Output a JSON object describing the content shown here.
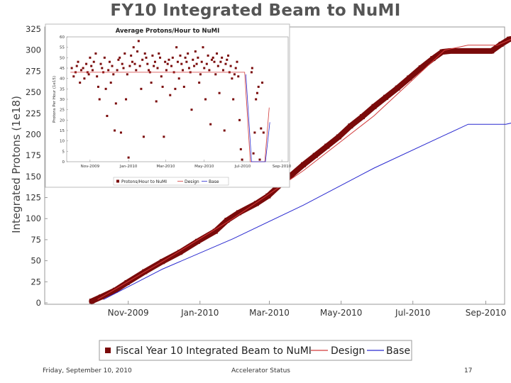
{
  "slide": {
    "footer_date": "Friday, September 10, 2010",
    "footer_center": "Accelerator Status",
    "page_number": "17"
  },
  "chart_data": [
    {
      "type": "line",
      "title": "FY10 Integrated Beam to NuMI",
      "ylabel": "Integrated Protons (1e18)",
      "xlabel": "",
      "ylim": [
        0,
        325
      ],
      "yticks": [
        0,
        25,
        50,
        75,
        100,
        125,
        150,
        175,
        200,
        225,
        250,
        275,
        300,
        325
      ],
      "x_domain_days": [
        -40,
        351
      ],
      "xticks": [
        {
          "label": "Nov-2009",
          "day": 31
        },
        {
          "label": "Jan-2010",
          "day": 92
        },
        {
          "label": "Mar-2010",
          "day": 151
        },
        {
          "label": "May-2010",
          "day": 212
        },
        {
          "label": "Jul-2010",
          "day": 273
        },
        {
          "label": "Sep-2010",
          "day": 335
        }
      ],
      "series": [
        {
          "name": "Fiscal Year 10 Integrated Beam to NuMI",
          "color": "#7a0a0a",
          "points": [
            [
              0,
              2
            ],
            [
              8,
              7
            ],
            [
              20,
              15
            ],
            [
              30,
              24
            ],
            [
              45,
              37
            ],
            [
              60,
              49
            ],
            [
              75,
              60
            ],
            [
              90,
              73
            ],
            [
              105,
              85
            ],
            [
              115,
              98
            ],
            [
              125,
              107
            ],
            [
              140,
              118
            ],
            [
              150,
              127
            ],
            [
              160,
              140
            ],
            [
              170,
              152
            ],
            [
              180,
              164
            ],
            [
              190,
              175
            ],
            [
              200,
              186
            ],
            [
              210,
              197
            ],
            [
              220,
              210
            ],
            [
              230,
              221
            ],
            [
              240,
              233
            ],
            [
              250,
              244
            ],
            [
              260,
              255
            ],
            [
              270,
              267
            ],
            [
              280,
              279
            ],
            [
              290,
              290
            ],
            [
              298,
              298
            ],
            [
              305,
              299
            ],
            [
              320,
              299
            ],
            [
              340,
              299
            ],
            [
              348,
              307
            ],
            [
              355,
              313
            ],
            [
              360,
              314
            ]
          ]
        },
        {
          "name": "Design",
          "color": "#d23a3a",
          "points": [
            [
              5,
              4
            ],
            [
              60,
              49
            ],
            [
              120,
              100
            ],
            [
              180,
              157
            ],
            [
              240,
              222
            ],
            [
              300,
              300
            ],
            [
              320,
              306
            ],
            [
              345,
              306
            ],
            [
              360,
              315
            ]
          ]
        },
        {
          "name": "Base",
          "color": "#2a2ad0",
          "points": [
            [
              10,
              4
            ],
            [
              60,
              40
            ],
            [
              120,
              76
            ],
            [
              180,
              116
            ],
            [
              240,
              160
            ],
            [
              300,
              199
            ],
            [
              320,
              212
            ],
            [
              352,
              212
            ],
            [
              368,
              217
            ]
          ]
        }
      ],
      "legend": [
        "Fiscal Year 10 Integrated Beam to NuMI",
        "Design",
        "Base"
      ]
    },
    {
      "type": "scatter",
      "title": "Average Protons/Hour to NuMI",
      "ylabel": "Protons Per Hour (1e15)",
      "ylim": [
        0,
        60
      ],
      "yticks": [
        0,
        5,
        10,
        15,
        20,
        25,
        30,
        35,
        40,
        45,
        50,
        55,
        60
      ],
      "x_domain_days": [
        -6,
        345
      ],
      "xticks": [
        {
          "label": "Nov-2009",
          "day": 31
        },
        {
          "label": "Jan-2010",
          "day": 92
        },
        {
          "label": "Mar-2010",
          "day": 151
        },
        {
          "label": "May-2010",
          "day": 212
        },
        {
          "label": "Jul-2010",
          "day": 273
        },
        {
          "label": "Sep-2010",
          "day": 335
        }
      ],
      "series": [
        {
          "name": "Protons/Hour to NuMI",
          "color": "#7a0a0a",
          "points": [
            [
              2,
              45
            ],
            [
              5,
              41
            ],
            [
              8,
              43
            ],
            [
              10,
              46
            ],
            [
              12,
              48
            ],
            [
              15,
              38
            ],
            [
              17,
              44
            ],
            [
              20,
              45
            ],
            [
              22,
              40
            ],
            [
              25,
              47
            ],
            [
              27,
              43
            ],
            [
              29,
              42
            ],
            [
              31,
              50
            ],
            [
              33,
              46
            ],
            [
              35,
              44
            ],
            [
              37,
              48
            ],
            [
              40,
              52
            ],
            [
              42,
              41
            ],
            [
              44,
              36
            ],
            [
              46,
              30
            ],
            [
              48,
              47
            ],
            [
              50,
              45
            ],
            [
              52,
              43
            ],
            [
              54,
              50
            ],
            [
              56,
              35
            ],
            [
              58,
              22
            ],
            [
              60,
              44
            ],
            [
              62,
              48
            ],
            [
              64,
              38
            ],
            [
              66,
              46
            ],
            [
              68,
              42
            ],
            [
              70,
              15
            ],
            [
              72,
              28
            ],
            [
              74,
              44
            ],
            [
              76,
              49
            ],
            [
              78,
              50
            ],
            [
              80,
              14
            ],
            [
              82,
              47
            ],
            [
              84,
              45
            ],
            [
              86,
              52
            ],
            [
              88,
              30
            ],
            [
              90,
              42
            ],
            [
              92,
              2
            ],
            [
              94,
              46
            ],
            [
              96,
              51
            ],
            [
              98,
              48
            ],
            [
              100,
              55
            ],
            [
              102,
              47
            ],
            [
              104,
              44
            ],
            [
              106,
              53
            ],
            [
              108,
              58
            ],
            [
              110,
              46
            ],
            [
              112,
              35
            ],
            [
              114,
              49
            ],
            [
              116,
              12
            ],
            [
              118,
              52
            ],
            [
              120,
              50
            ],
            [
              122,
              47
            ],
            [
              124,
              44
            ],
            [
              126,
              43
            ],
            [
              128,
              38
            ],
            [
              130,
              51
            ],
            [
              132,
              46
            ],
            [
              134,
              48
            ],
            [
              136,
              29
            ],
            [
              138,
              45
            ],
            [
              140,
              52
            ],
            [
              142,
              50
            ],
            [
              144,
              41
            ],
            [
              146,
              36
            ],
            [
              148,
              12
            ],
            [
              150,
              48
            ],
            [
              152,
              44
            ],
            [
              154,
              47
            ],
            [
              156,
              49
            ],
            [
              158,
              32
            ],
            [
              160,
              46
            ],
            [
              162,
              50
            ],
            [
              164,
              43
            ],
            [
              166,
              35
            ],
            [
              168,
              55
            ],
            [
              170,
              48
            ],
            [
              172,
              40
            ],
            [
              174,
              51
            ],
            [
              176,
              47
            ],
            [
              178,
              44
            ],
            [
              180,
              36
            ],
            [
              182,
              50
            ],
            [
              184,
              48
            ],
            [
              186,
              52
            ],
            [
              188,
              45
            ],
            [
              190,
              43
            ],
            [
              192,
              25
            ],
            [
              194,
              49
            ],
            [
              196,
              46
            ],
            [
              198,
              53
            ],
            [
              200,
              47
            ],
            [
              202,
              50
            ],
            [
              204,
              38
            ],
            [
              206,
              42
            ],
            [
              208,
              48
            ],
            [
              210,
              55
            ],
            [
              212,
              45
            ],
            [
              214,
              30
            ],
            [
              216,
              47
            ],
            [
              218,
              51
            ],
            [
              220,
              44
            ],
            [
              222,
              18
            ],
            [
              224,
              49
            ],
            [
              226,
              50
            ],
            [
              228,
              48
            ],
            [
              230,
              42
            ],
            [
              232,
              52
            ],
            [
              234,
              46
            ],
            [
              236,
              33
            ],
            [
              238,
              48
            ],
            [
              240,
              50
            ],
            [
              242,
              44
            ],
            [
              244,
              15
            ],
            [
              246,
              47
            ],
            [
              248,
              49
            ],
            [
              250,
              51
            ],
            [
              252,
              43
            ],
            [
              254,
              46
            ],
            [
              256,
              40
            ],
            [
              258,
              30
            ],
            [
              260,
              42
            ],
            [
              262,
              45
            ],
            [
              264,
              48
            ],
            [
              266,
              41
            ],
            [
              268,
              20
            ],
            [
              270,
              6
            ],
            [
              272,
              1
            ],
            [
              287,
              43
            ],
            [
              288,
              45
            ],
            [
              290,
              4
            ],
            [
              292,
              14
            ],
            [
              294,
              30
            ],
            [
              296,
              33
            ],
            [
              298,
              36
            ],
            [
              300,
              1
            ],
            [
              302,
              16
            ],
            [
              304,
              38
            ],
            [
              306,
              14
            ]
          ]
        },
        {
          "name": "Design",
          "color": "#d23a3a",
          "points": [
            [
              0,
              43
            ],
            [
              276,
              43
            ],
            [
              285,
              0
            ],
            [
              308,
              0
            ],
            [
              315,
              26
            ]
          ]
        },
        {
          "name": "Base",
          "color": "#2a2ad0",
          "points": [
            [
              278,
              42
            ],
            [
              287,
              0
            ],
            [
              309,
              0
            ],
            [
              316,
              19
            ]
          ]
        }
      ],
      "legend": [
        "Protons/Hour to NuMI",
        "Design",
        "Base"
      ]
    }
  ]
}
